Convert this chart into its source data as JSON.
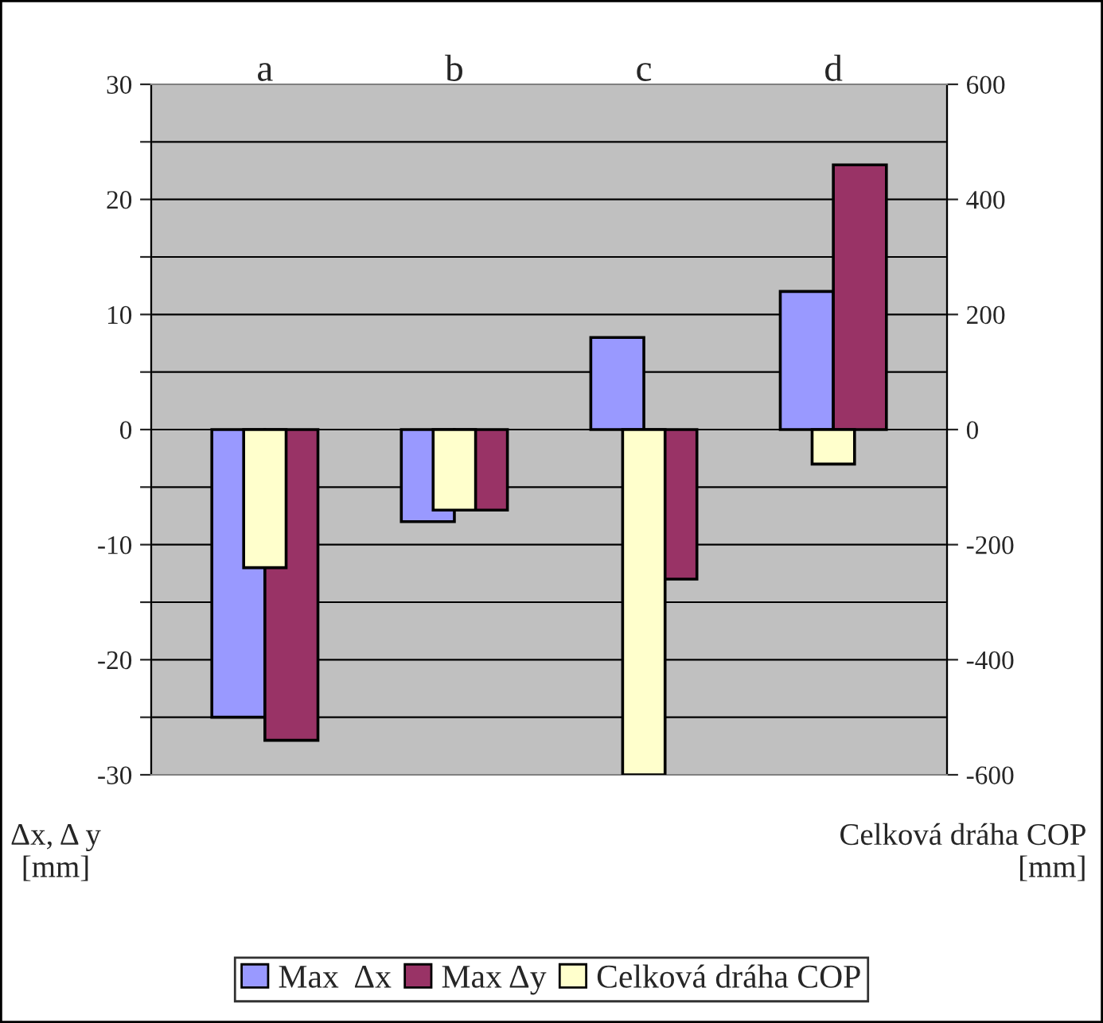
{
  "chart_data": {
    "type": "bar",
    "categories": [
      "a",
      "b",
      "c",
      "d"
    ],
    "series": [
      {
        "name": "Max  Δx",
        "color": "#9999ff",
        "values": [
          -25,
          -8,
          8,
          12
        ]
      },
      {
        "name": "Max Δy",
        "color": "#993366",
        "values": [
          -27,
          -7,
          -13,
          23
        ]
      },
      {
        "name": "Celková dráha COP",
        "color": "#ffffcc",
        "values": [
          -240,
          -140,
          -600,
          -60
        ],
        "axis": "y2"
      }
    ],
    "ylabel": "Δx, Δ y\n[mm]",
    "y2label": "Celková dráha COP\n[mm]",
    "ylim": [
      -30,
      30
    ],
    "yticks": [
      -30,
      {
        "value": -25,
        "label": null
      },
      -20,
      {
        "value": -15,
        "label": null
      },
      -10,
      {
        "value": -5,
        "label": null
      },
      0,
      {
        "value": 5,
        "label": null
      },
      10,
      {
        "value": 15,
        "label": null
      },
      20,
      {
        "value": 25,
        "label": null
      },
      30
    ],
    "y2lim": [
      -600,
      600
    ],
    "y2ticks": [
      -600,
      -400,
      -200,
      0,
      200,
      400,
      600
    ],
    "grid": "y",
    "legend": "bottom"
  }
}
